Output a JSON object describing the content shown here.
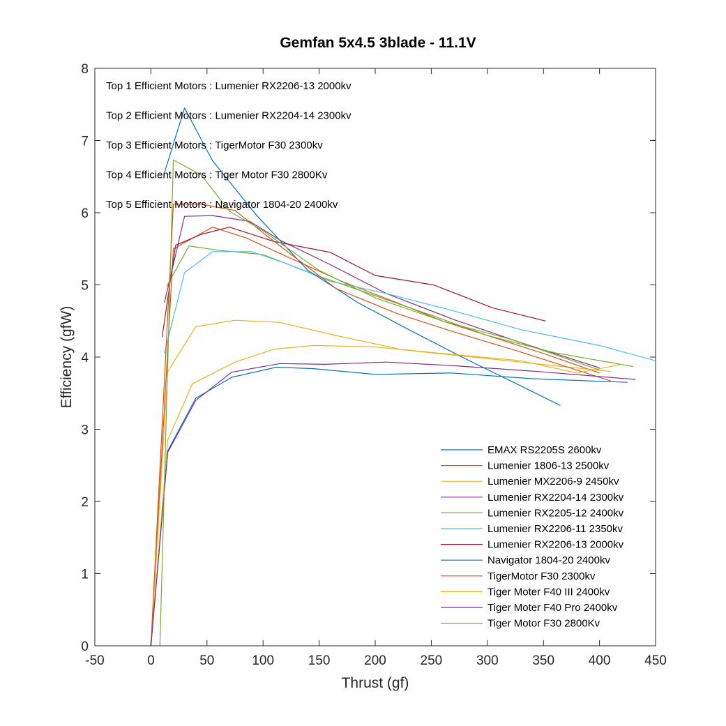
{
  "chart_data": {
    "type": "line",
    "title": "Gemfan 5x4.5 3blade - 11.1V",
    "xlabel": "Thrust (gf)",
    "ylabel": "Efficiency (gfW)",
    "xlim": [
      -50,
      450
    ],
    "ylim": [
      0,
      8
    ],
    "xticks": [
      -50,
      0,
      50,
      100,
      150,
      200,
      250,
      300,
      350,
      400,
      450
    ],
    "yticks": [
      0,
      1,
      2,
      3,
      4,
      5,
      6,
      7,
      8
    ],
    "grid": false,
    "legend_position": "bottom-right",
    "annotations": [
      "Top 1 Efficient Motors : Lumenier RX2206-13 2000kv",
      "Top 2 Efficient Motors : Lumenier RX2204-14 2300kv",
      "Top 3 Efficient Motors : TigerMotor F30 2300kv",
      "Top 4 Efficient Motors : Tiger Motor F30 2800Kv",
      "Top 5 Efficient Motors : Navigator 1804-20 2400kv"
    ],
    "series": [
      {
        "name": "EMAX RS2205S 2600kv",
        "color": "#0072BD",
        "x": [
          0,
          15,
          40,
          72,
          112,
          145,
          200,
          268,
          340,
          425
        ],
        "y": [
          0,
          2.7,
          3.43,
          3.72,
          3.86,
          3.84,
          3.76,
          3.78,
          3.7,
          3.65
        ]
      },
      {
        "name": "Lumenier 1806-13 2500kv",
        "color": "#D95319",
        "x": [
          0,
          20,
          55,
          85,
          120,
          170,
          220,
          260,
          300,
          350,
          400
        ],
        "y": [
          0,
          5.5,
          5.8,
          5.65,
          5.4,
          5.05,
          4.75,
          4.5,
          4.3,
          4.05,
          3.78
        ]
      },
      {
        "name": "Lumenier MX2206-9 2450kv",
        "color": "#EDB120",
        "x": [
          0,
          15,
          40,
          75,
          115,
          165,
          225,
          300,
          360,
          410
        ],
        "y": [
          0,
          3.8,
          4.42,
          4.51,
          4.48,
          4.3,
          4.1,
          3.98,
          3.88,
          3.8
        ]
      },
      {
        "name": "Lumenier RX2204-14 2300kv",
        "color": "#7E2F8E",
        "x": [
          12,
          30,
          55,
          88,
          115,
          160,
          210,
          270,
          330,
          400
        ],
        "y": [
          4.75,
          5.95,
          5.96,
          5.88,
          5.62,
          5.28,
          4.88,
          4.52,
          4.2,
          3.85
        ]
      },
      {
        "name": "Lumenier RX2205-12 2400kv",
        "color": "#77AC30",
        "x": [
          14,
          34,
          60,
          100,
          150,
          200,
          250,
          300,
          360,
          430
        ],
        "y": [
          4.98,
          5.54,
          5.48,
          5.42,
          5.12,
          4.85,
          4.58,
          4.3,
          4.06,
          3.87
        ]
      },
      {
        "name": "Lumenier RX2206-11 2350kv",
        "color": "#4DBEEE",
        "x": [
          12,
          30,
          55,
          90,
          120,
          160,
          210,
          270,
          330,
          400,
          450
        ],
        "y": [
          4.05,
          5.17,
          5.46,
          5.46,
          5.3,
          5.05,
          4.88,
          4.64,
          4.38,
          4.16,
          3.95
        ]
      },
      {
        "name": "Lumenier RX2206-13 2000kv",
        "color": "#A2142F",
        "x": [
          10,
          22,
          45,
          70,
          110,
          160,
          200,
          252,
          305,
          352
        ],
        "y": [
          4.28,
          5.55,
          5.7,
          5.8,
          5.6,
          5.45,
          5.13,
          5.0,
          4.68,
          4.5
        ]
      },
      {
        "name": "Navigator 1804-20 2400kv",
        "color": "#0072BD",
        "x": [
          12,
          30,
          55,
          95,
          140,
          185,
          230,
          280,
          330,
          365
        ],
        "y": [
          6.55,
          7.45,
          6.72,
          5.95,
          5.2,
          4.75,
          4.38,
          3.98,
          3.6,
          3.33
        ]
      },
      {
        "name": "TigerMotor F30 2300kv",
        "color": "#D95319",
        "x": [
          0,
          20,
          45,
          75,
          110,
          165,
          220,
          270,
          330,
          410
        ],
        "y": [
          0,
          6.12,
          6.12,
          6.03,
          5.6,
          4.95,
          4.6,
          4.35,
          4.07,
          3.67
        ]
      },
      {
        "name": "Tiger Moter F40 III 2400kv",
        "color": "#EDB120",
        "x": [
          0,
          15,
          37,
          75,
          110,
          145,
          200,
          260,
          330,
          380,
          420
        ],
        "y": [
          0,
          2.85,
          3.63,
          3.93,
          4.11,
          4.16,
          4.14,
          4.05,
          3.95,
          3.78,
          3.9
        ]
      },
      {
        "name": "Tiger Moter F40 Pro 2400kv",
        "color": "#7E2F8E",
        "x": [
          0,
          15,
          40,
          72,
          115,
          155,
          210,
          270,
          345,
          432
        ],
        "y": [
          0,
          2.68,
          3.4,
          3.79,
          3.91,
          3.9,
          3.93,
          3.88,
          3.8,
          3.69
        ]
      },
      {
        "name": "Tiger Motor F30 2800Kv",
        "color": "#77AC30",
        "x": [
          8,
          20,
          45,
          70,
          100,
          150,
          200,
          260,
          320,
          400
        ],
        "y": [
          0,
          6.73,
          6.52,
          6.02,
          5.75,
          5.2,
          4.82,
          4.5,
          4.25,
          3.82
        ]
      }
    ]
  }
}
